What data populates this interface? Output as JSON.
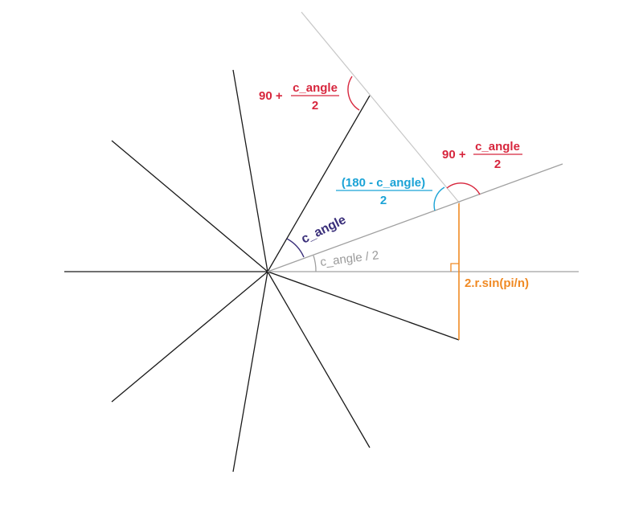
{
  "labels": {
    "top_fraction": {
      "prefix": "90 + ",
      "numerator": "c_angle",
      "denominator": "2"
    },
    "right_fraction": {
      "prefix": "90 + ",
      "numerator": "c_angle",
      "denominator": "2"
    },
    "blue_fraction": {
      "numerator": "(180 - c_angle)",
      "denominator": "2"
    },
    "c_angle": "c_angle",
    "half_angle": "c_angle / 2",
    "chord": "2.r.sin(pi/n)"
  },
  "colors": {
    "spoke": "#1a1a1a",
    "light_line": "#c8c8c8",
    "gray_line": "#a0a0a0",
    "red": "#d7263d",
    "blue": "#1ba3d6",
    "purple": "#3a2f7a",
    "gray_text": "#9a9a9a",
    "orange": "#f08a24"
  }
}
